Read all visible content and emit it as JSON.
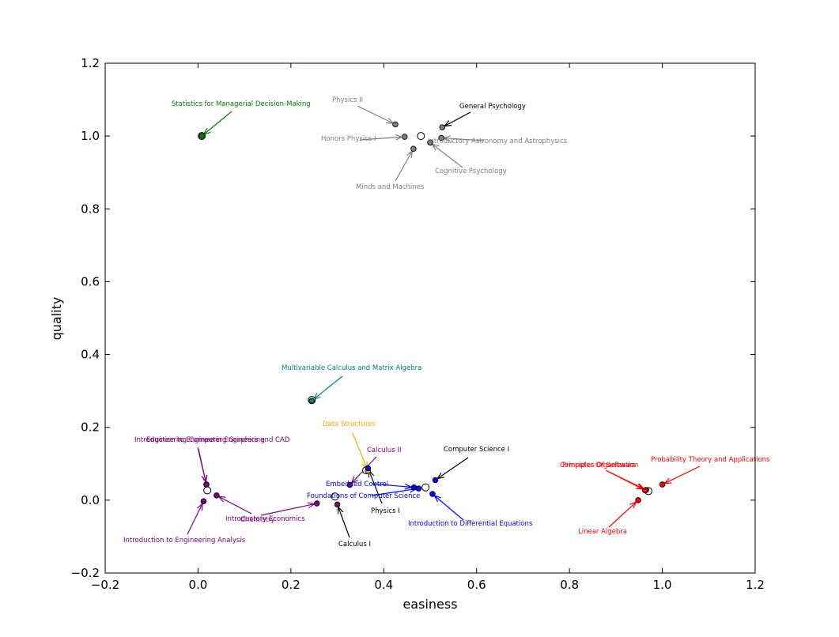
{
  "chart_data": {
    "type": "scatter",
    "xlabel": "easiness",
    "ylabel": "quality",
    "xlim": [
      -0.2,
      1.2
    ],
    "ylim": [
      -0.2,
      1.2
    ],
    "xticks": [
      "−0.2",
      "0.0",
      "0.2",
      "0.4",
      "0.6",
      "0.8",
      "1.0",
      "1.2"
    ],
    "xtick_values": [
      -0.2,
      0.0,
      0.2,
      0.4,
      0.6,
      0.8,
      1.0,
      1.2
    ],
    "yticks": [
      "−0.2",
      "0.0",
      "0.2",
      "0.4",
      "0.6",
      "0.8",
      "1.0",
      "1.2"
    ],
    "ytick_values": [
      -0.2,
      0.0,
      0.2,
      0.4,
      0.6,
      0.8,
      1.0,
      1.2
    ],
    "grid": false,
    "centroids": [
      {
        "x": 0.48,
        "y": 1.0
      },
      {
        "x": 0.008,
        "y": 1.0
      },
      {
        "x": 0.245,
        "y": 0.275
      },
      {
        "x": 0.02,
        "y": 0.027
      },
      {
        "x": 0.295,
        "y": 0.01
      },
      {
        "x": 0.362,
        "y": 0.082
      },
      {
        "x": 0.49,
        "y": 0.035
      },
      {
        "x": 0.97,
        "y": 0.025
      }
    ],
    "clusters": [
      {
        "color": "#808080",
        "points": [
          {
            "label": "Physics II",
            "x": 0.425,
            "y": 1.032
          },
          {
            "label": "General Psychology",
            "x": 0.526,
            "y": 1.024,
            "label_color": "#000000"
          },
          {
            "label": "Honors Physics I",
            "x": 0.445,
            "y": 0.998
          },
          {
            "label": "Introductory Astronomy and Astrophysics",
            "x": 0.524,
            "y": 0.995
          },
          {
            "label": "Cognitive Psychology",
            "x": 0.5,
            "y": 0.982
          },
          {
            "label": "Minds and Machines",
            "x": 0.464,
            "y": 0.965
          }
        ]
      },
      {
        "color": "#008000",
        "points": [
          {
            "label": "Statistics for Managerial Decision-Making",
            "x": 0.008,
            "y": 1.0
          }
        ]
      },
      {
        "color": "#008080",
        "points": [
          {
            "label": "Multivariable Calculus and Matrix Algebra",
            "x": 0.245,
            "y": 0.273
          }
        ]
      },
      {
        "color": "#800080",
        "points": [
          {
            "label": "Introduction to Engineering Graphics and CAD",
            "x": 0.018,
            "y": 0.043
          },
          {
            "label": "Engineering Computer Engineering",
            "x": 0.018,
            "y": 0.043
          },
          {
            "label": "Introductory Economics",
            "x": 0.04,
            "y": 0.013
          },
          {
            "label": "Introduction to Engineering Analysis",
            "x": 0.012,
            "y": -0.003
          },
          {
            "label": "Chemistry",
            "x": 0.256,
            "y": -0.009
          },
          {
            "label": "Calculus II",
            "x": 0.327,
            "y": 0.042
          },
          {
            "label": "Calculus I",
            "x": 0.3,
            "y": -0.012,
            "label_color": "#000000"
          }
        ]
      },
      {
        "color": "#ffa500",
        "points": [
          {
            "label": "Data Structures",
            "x": 0.366,
            "y": 0.08
          }
        ]
      },
      {
        "color": "#0000ff",
        "points": [
          {
            "label": "Computer Science I",
            "x": 0.511,
            "y": 0.055,
            "label_color": "#000000"
          },
          {
            "label": "Embedded Control",
            "x": 0.465,
            "y": 0.035
          },
          {
            "label": "Foundations of Computer Science",
            "x": 0.475,
            "y": 0.032
          },
          {
            "label": "Introduction to Differential Equations",
            "x": 0.505,
            "y": 0.017
          },
          {
            "label": "Physics I",
            "x": 0.366,
            "y": 0.088,
            "label_color": "#000000"
          }
        ]
      },
      {
        "color": "#ff0000",
        "points": [
          {
            "label": "Probability Theory and Applications",
            "x": 1.0,
            "y": 0.043
          },
          {
            "label": "Principles Of Software",
            "x": 0.965,
            "y": 0.028
          },
          {
            "label": "Computer Organization",
            "x": 0.963,
            "y": 0.027
          },
          {
            "label": "Linear Algebra",
            "x": 0.948,
            "y": 0.0
          }
        ]
      }
    ]
  }
}
